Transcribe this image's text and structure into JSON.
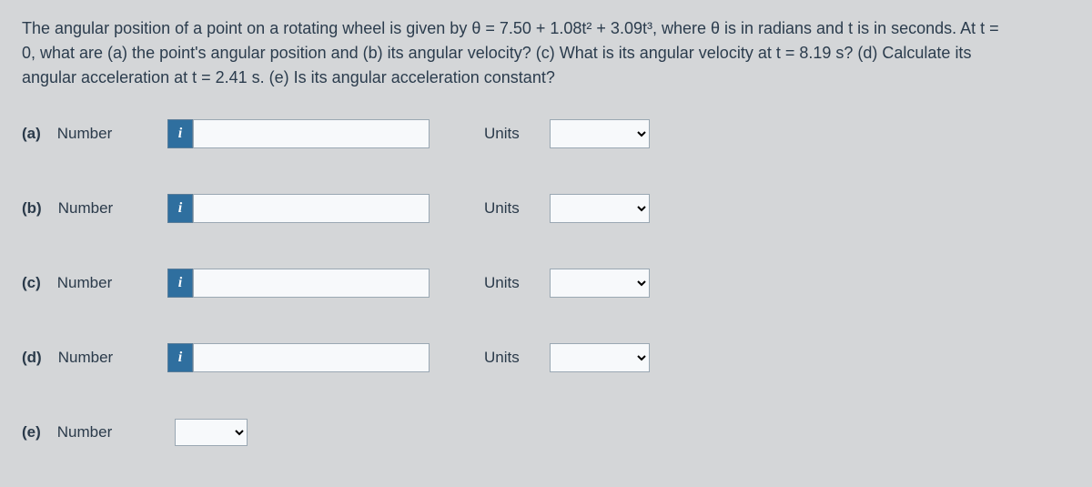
{
  "question": {
    "line1": "The angular position of a point on a rotating wheel is given by θ = 7.50 + 1.08t² + 3.09t³, where θ is in radians and t is in seconds. At t =",
    "line2": "0, what are (a) the point's angular position and (b) its angular velocity? (c) What is its angular velocity at t = 8.19 s? (d) Calculate its",
    "line3": "angular acceleration at t = 2.41 s. (e) Is its angular acceleration constant?"
  },
  "labels": {
    "number": "Number",
    "units": "Units",
    "info": "i"
  },
  "parts": {
    "a": {
      "tag": "(a)",
      "value": "",
      "units": ""
    },
    "b": {
      "tag": "(b)",
      "value": "",
      "units": ""
    },
    "c": {
      "tag": "(c)",
      "value": "",
      "units": ""
    },
    "d": {
      "tag": "(d)",
      "value": "",
      "units": ""
    },
    "e": {
      "tag": "(e)",
      "value": ""
    }
  }
}
